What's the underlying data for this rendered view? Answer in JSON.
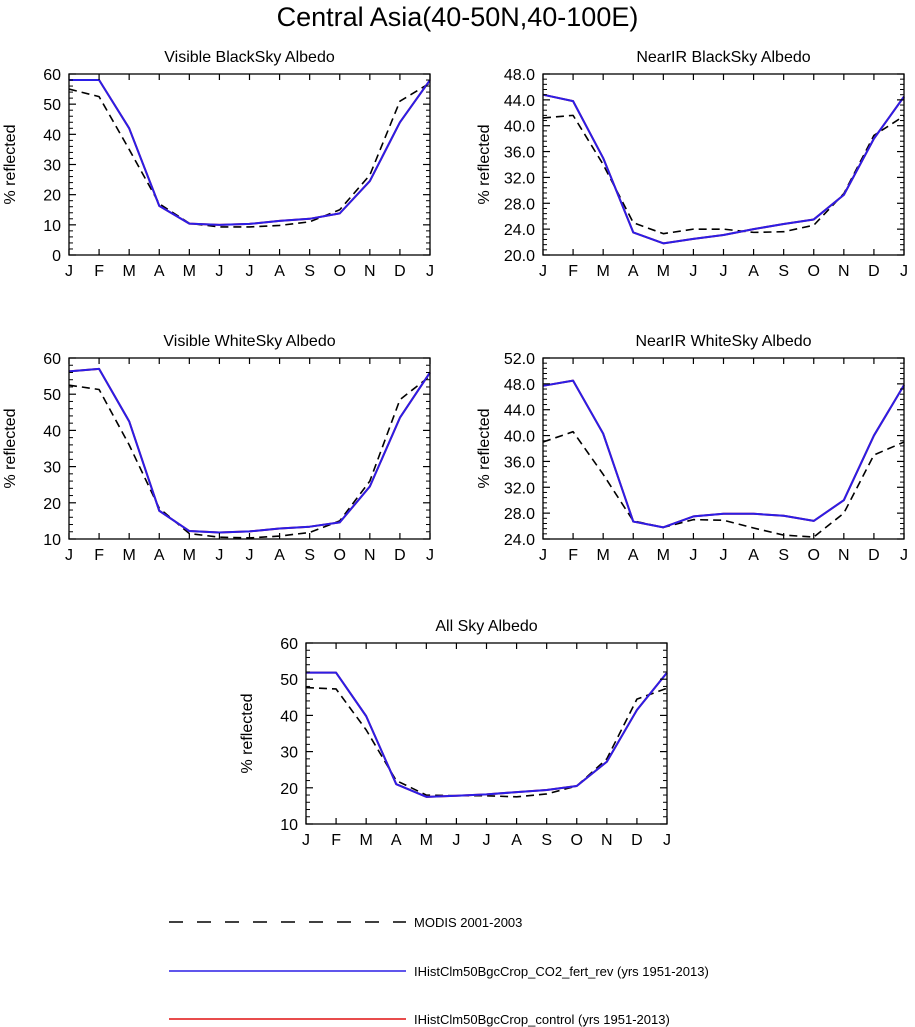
{
  "page_title": "Central Asia(40-50N,40-100E)",
  "colors": {
    "modis": "#000000",
    "co2_fert_rev": "#2b1ee6",
    "control": "#e01010"
  },
  "legend": {
    "entries": [
      {
        "label": "MODIS 2001-2003",
        "style": "dashed",
        "color": "#000000"
      },
      {
        "label": "IHistClm50BgcCrop_CO2_fert_rev (yrs 1951-2013)",
        "style": "solid",
        "color": "#2b1ee6"
      },
      {
        "label": "IHistClm50BgcCrop_control (yrs 1951-2013)",
        "style": "solid",
        "color": "#e01010"
      }
    ]
  },
  "chart_data": [
    {
      "type": "line",
      "title": "Visible BlackSky Albedo",
      "ylabel": "% reflected",
      "xlabel": "",
      "categories": [
        "J",
        "F",
        "M",
        "A",
        "M",
        "J",
        "J",
        "A",
        "S",
        "O",
        "N",
        "D",
        "J"
      ],
      "ylim": [
        0,
        60
      ],
      "yticks": [
        0,
        10,
        20,
        30,
        40,
        50,
        60
      ],
      "ytick_labels": [
        "0",
        "10",
        "20",
        "30",
        "40",
        "50",
        "60"
      ],
      "series": [
        {
          "name": "MODIS 2001-2003",
          "style": "dashed",
          "color": "#000000",
          "values": [
            55,
            52.5,
            35,
            17,
            10.5,
            9.3,
            9.3,
            9.8,
            11,
            15,
            26.5,
            51,
            57
          ]
        },
        {
          "name": "IHistClm50BgcCrop_control (yrs 1951-2013)",
          "style": "solid",
          "color": "#e01010",
          "values": [
            58,
            58,
            42,
            16.3,
            10.4,
            10,
            10.3,
            11.3,
            12,
            13.8,
            24.5,
            44,
            58
          ]
        },
        {
          "name": "IHistClm50BgcCrop_CO2_fert_rev (yrs 1951-2013)",
          "style": "solid",
          "color": "#2b1ee6",
          "values": [
            58,
            58,
            42,
            16.3,
            10.4,
            10,
            10.3,
            11.3,
            12,
            13.8,
            24.5,
            44,
            58
          ]
        }
      ]
    },
    {
      "type": "line",
      "title": "NearIR BlackSky Albedo",
      "ylabel": "% reflected",
      "xlabel": "",
      "categories": [
        "J",
        "F",
        "M",
        "A",
        "M",
        "J",
        "J",
        "A",
        "S",
        "O",
        "N",
        "D",
        "J"
      ],
      "ylim": [
        20,
        48
      ],
      "yticks": [
        20,
        24,
        28,
        32,
        36,
        40,
        44,
        48
      ],
      "ytick_labels": [
        "20.0",
        "24.0",
        "28.0",
        "32.0",
        "36.0",
        "40.0",
        "44.0",
        "48.0"
      ],
      "series": [
        {
          "name": "MODIS 2001-2003",
          "style": "dashed",
          "color": "#000000",
          "values": [
            41.2,
            41.6,
            34,
            25,
            23.3,
            24,
            24,
            23.5,
            23.6,
            24.6,
            29.5,
            38.5,
            41.5
          ]
        },
        {
          "name": "IHistClm50BgcCrop_control (yrs 1951-2013)",
          "style": "solid",
          "color": "#e01010",
          "values": [
            44.8,
            43.8,
            35,
            23.5,
            21.8,
            22.5,
            23.1,
            24,
            24.8,
            25.5,
            29.3,
            38,
            44.5
          ]
        },
        {
          "name": "IHistClm50BgcCrop_CO2_fert_rev (yrs 1951-2013)",
          "style": "solid",
          "color": "#2b1ee6",
          "values": [
            44.8,
            43.8,
            35,
            23.5,
            21.8,
            22.5,
            23.1,
            24,
            24.8,
            25.5,
            29.3,
            38,
            44.5
          ]
        }
      ]
    },
    {
      "type": "line",
      "title": "Visible WhiteSky Albedo",
      "ylabel": "% reflected",
      "xlabel": "",
      "categories": [
        "J",
        "F",
        "M",
        "A",
        "M",
        "J",
        "J",
        "A",
        "S",
        "O",
        "N",
        "D",
        "J"
      ],
      "ylim": [
        10,
        60
      ],
      "yticks": [
        10,
        20,
        30,
        40,
        50,
        60
      ],
      "ytick_labels": [
        "10",
        "20",
        "30",
        "40",
        "50",
        "60"
      ],
      "series": [
        {
          "name": "MODIS 2001-2003",
          "style": "dashed",
          "color": "#000000",
          "values": [
            52.5,
            51.3,
            36,
            18.5,
            11.5,
            10.5,
            10.3,
            10.8,
            11.8,
            15,
            26,
            48.5,
            55
          ]
        },
        {
          "name": "IHistClm50BgcCrop_control (yrs 1951-2013)",
          "style": "solid",
          "color": "#e01010",
          "values": [
            56.3,
            57,
            42.5,
            17.8,
            12.2,
            11.8,
            12.1,
            12.9,
            13.4,
            14.6,
            24.5,
            43.5,
            56
          ]
        },
        {
          "name": "IHistClm50BgcCrop_CO2_fert_rev (yrs 1951-2013)",
          "style": "solid",
          "color": "#2b1ee6",
          "values": [
            56.3,
            57,
            42.5,
            17.8,
            12.2,
            11.8,
            12.1,
            12.9,
            13.4,
            14.6,
            24.5,
            43.5,
            56
          ]
        }
      ]
    },
    {
      "type": "line",
      "title": "NearIR WhiteSky Albedo",
      "ylabel": "% reflected",
      "xlabel": "",
      "categories": [
        "J",
        "F",
        "M",
        "A",
        "M",
        "J",
        "J",
        "A",
        "S",
        "O",
        "N",
        "D",
        "J"
      ],
      "ylim": [
        24,
        52
      ],
      "yticks": [
        24,
        28,
        32,
        36,
        40,
        44,
        48,
        52
      ],
      "ytick_labels": [
        "24.0",
        "28.0",
        "32.0",
        "36.0",
        "40.0",
        "44.0",
        "48.0",
        "52.0"
      ],
      "series": [
        {
          "name": "MODIS 2001-2003",
          "style": "dashed",
          "color": "#000000",
          "values": [
            39,
            40.6,
            34,
            26.8,
            25.8,
            27,
            26.9,
            25.7,
            24.6,
            24.3,
            28,
            37,
            39
          ]
        },
        {
          "name": "IHistClm50BgcCrop_control (yrs 1951-2013)",
          "style": "solid",
          "color": "#e01010",
          "values": [
            47.7,
            48.5,
            40.3,
            26.7,
            25.8,
            27.5,
            27.9,
            27.9,
            27.6,
            26.8,
            30,
            40,
            47.8
          ]
        },
        {
          "name": "IHistClm50BgcCrop_CO2_fert_rev (yrs 1951-2013)",
          "style": "solid",
          "color": "#2b1ee6",
          "values": [
            47.7,
            48.5,
            40.3,
            26.7,
            25.8,
            27.5,
            27.9,
            27.9,
            27.6,
            26.8,
            30,
            40,
            47.8
          ]
        }
      ]
    },
    {
      "type": "line",
      "title": "All Sky Albedo",
      "ylabel": "% reflected",
      "xlabel": "",
      "categories": [
        "J",
        "F",
        "M",
        "A",
        "M",
        "J",
        "J",
        "A",
        "S",
        "O",
        "N",
        "D",
        "J"
      ],
      "ylim": [
        10,
        60
      ],
      "yticks": [
        10,
        20,
        30,
        40,
        50,
        60
      ],
      "ytick_labels": [
        "10",
        "20",
        "30",
        "40",
        "50",
        "60"
      ],
      "series": [
        {
          "name": "MODIS 2001-2003",
          "style": "dashed",
          "color": "#000000",
          "values": [
            47.7,
            47.3,
            36,
            22,
            18,
            17.8,
            17.8,
            17.5,
            18.3,
            20.5,
            28,
            44.5,
            47.5
          ]
        },
        {
          "name": "IHistClm50BgcCrop_control (yrs 1951-2013)",
          "style": "solid",
          "color": "#e01010",
          "values": [
            51.8,
            51.8,
            39.8,
            21,
            17.5,
            17.8,
            18.2,
            18.8,
            19.4,
            20.5,
            27.2,
            41.5,
            51.8
          ]
        },
        {
          "name": "IHistClm50BgcCrop_CO2_fert_rev (yrs 1951-2013)",
          "style": "solid",
          "color": "#2b1ee6",
          "values": [
            51.8,
            51.8,
            39.8,
            21,
            17.5,
            17.8,
            18.2,
            18.8,
            19.4,
            20.5,
            27.2,
            41.5,
            51.8
          ]
        }
      ]
    }
  ]
}
